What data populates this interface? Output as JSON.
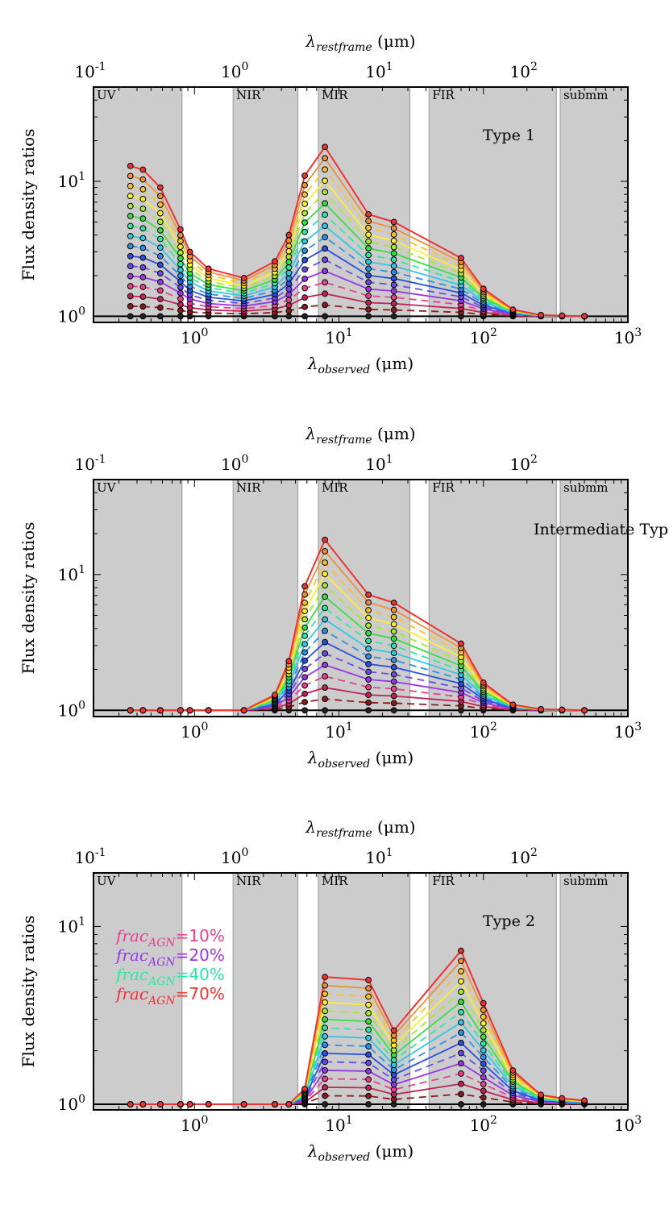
{
  "figure": {
    "ylabel": "Flux density ratios",
    "xlabel_bottom": "λobserved (μm)",
    "xlabel_top": "λrestframe (μm)"
  },
  "bands": [
    {
      "label": "UV",
      "x0": 0.2,
      "x1": 0.82
    },
    {
      "label": "NIR",
      "x0": 1.85,
      "x1": 5.2
    },
    {
      "label": "MIR",
      "x0": 7.2,
      "x1": 31
    },
    {
      "label": "FIR",
      "x0": 42,
      "x1": 320
    },
    {
      "label": "submm",
      "x0": 340,
      "x1": 1000
    }
  ],
  "legend": [
    {
      "label": "frac_AGN=10%",
      "sub": "AGN",
      "pct": "=10%",
      "color": "#e8408f"
    },
    {
      "label": "frac_AGN=20%",
      "sub": "AGN",
      "pct": "=20%",
      "color": "#9b36e6"
    },
    {
      "label": "frac_AGN=40%",
      "sub": "AGN",
      "pct": "=40%",
      "color": "#2de8a3"
    },
    {
      "label": "frac_AGN=70%",
      "sub": "AGN",
      "pct": "=70%",
      "color": "#ee3333"
    }
  ],
  "series_colors": [
    "#222222",
    "#8b1a1a",
    "#c0225a",
    "#e8408f",
    "#9b36e6",
    "#6a4be8",
    "#2850e0",
    "#2a92e6",
    "#30c8e6",
    "#2de8a3",
    "#38e040",
    "#a8e830",
    "#ffee30",
    "#ffc030",
    "#f09030",
    "#ee3333"
  ],
  "series_styles": [
    "solid",
    "dashed",
    "solid",
    "dashed",
    "solid",
    "dashed",
    "solid",
    "dashed",
    "solid",
    "dashed",
    "solid",
    "dashed",
    "solid",
    "dashed",
    "solid",
    "solid"
  ],
  "chart_data": [
    {
      "type": "line",
      "title": "Type 1",
      "xlabel": "λobserved (μm)",
      "xlabel_top": "λrestframe (μm)",
      "ylabel": "Flux density ratios",
      "xscale": "log",
      "yscale": "log",
      "xlim": [
        0.2,
        1000
      ],
      "ylim": [
        0.9,
        50
      ],
      "top_axis_z": 1.9,
      "x": [
        0.36,
        0.44,
        0.58,
        0.8,
        0.93,
        1.25,
        2.2,
        3.6,
        4.5,
        5.8,
        8.0,
        16,
        24,
        70,
        100,
        160,
        250,
        350,
        500
      ],
      "max_curve": [
        13,
        12.2,
        9,
        4.4,
        3.0,
        2.25,
        1.92,
        2.55,
        4.0,
        11,
        18,
        5.7,
        5.0,
        2.7,
        1.6,
        1.12,
        1.02,
        1.01,
        1.0
      ],
      "series_count": 16,
      "series_note": "16 curves from fracAGN=0% (flat at 1) to fracAGN=70% (max_curve), interpolated in ratio space",
      "yticks": [
        {
          "v": 1,
          "label": "10^0"
        },
        {
          "v": 10,
          "label": "10^1"
        }
      ],
      "xticks_bottom": [
        {
          "v": 1,
          "label": "10^0"
        },
        {
          "v": 10,
          "label": "10^1"
        },
        {
          "v": 100,
          "label": "10^2"
        },
        {
          "v": 1000,
          "label": "10^3"
        }
      ],
      "xticks_top": [
        {
          "v": 0.1,
          "label": "10^-1"
        },
        {
          "v": 1,
          "label": "10^0"
        },
        {
          "v": 10,
          "label": "10^1"
        },
        {
          "v": 100,
          "label": "10^2"
        }
      ]
    },
    {
      "type": "line",
      "title": "Intermediate Type",
      "xlabel": "λobserved (μm)",
      "xlabel_top": "λrestframe (μm)",
      "ylabel": "Flux density ratios",
      "xscale": "log",
      "yscale": "log",
      "xlim": [
        0.2,
        1000
      ],
      "ylim": [
        0.9,
        50
      ],
      "top_axis_z": 1.9,
      "x": [
        0.36,
        0.44,
        0.58,
        0.8,
        0.93,
        1.25,
        2.2,
        3.6,
        4.5,
        5.8,
        8.0,
        16,
        24,
        70,
        100,
        160,
        250,
        350,
        500
      ],
      "max_curve": [
        1.0,
        1.0,
        1.0,
        1.0,
        1.0,
        1.0,
        1.0,
        1.3,
        2.3,
        8.2,
        18,
        7.1,
        6.2,
        3.1,
        1.6,
        1.1,
        1.02,
        1.01,
        1.0
      ],
      "series_count": 16,
      "series_note": "16 curves from fracAGN=0% (flat at 1) to fracAGN=70% (max_curve), interpolated in ratio space",
      "yticks": [
        {
          "v": 1,
          "label": "10^0"
        },
        {
          "v": 10,
          "label": "10^1"
        }
      ],
      "xticks_bottom": [
        {
          "v": 1,
          "label": "10^0"
        },
        {
          "v": 10,
          "label": "10^1"
        },
        {
          "v": 100,
          "label": "10^2"
        },
        {
          "v": 1000,
          "label": "10^3"
        }
      ],
      "xticks_top": [
        {
          "v": 0.1,
          "label": "10^-1"
        },
        {
          "v": 1,
          "label": "10^0"
        },
        {
          "v": 10,
          "label": "10^1"
        },
        {
          "v": 100,
          "label": "10^2"
        }
      ]
    },
    {
      "type": "line",
      "title": "Type 2",
      "xlabel": "λobserved (μm)",
      "xlabel_top": "λrestframe (μm)",
      "ylabel": "Flux density ratios",
      "xscale": "log",
      "yscale": "log",
      "xlim": [
        0.2,
        1000
      ],
      "ylim": [
        0.93,
        20
      ],
      "top_axis_z": 1.9,
      "x": [
        0.36,
        0.44,
        0.58,
        0.8,
        0.93,
        1.25,
        2.2,
        3.6,
        4.5,
        5.8,
        8.0,
        16,
        24,
        70,
        100,
        160,
        250,
        350,
        500
      ],
      "max_curve": [
        1.0,
        1.0,
        1.0,
        1.0,
        1.0,
        1.0,
        1.0,
        1.0,
        1.0,
        1.22,
        5.2,
        5.0,
        2.6,
        7.3,
        3.7,
        1.55,
        1.13,
        1.08,
        1.05
      ],
      "series_count": 16,
      "series_note": "16 curves from fracAGN=0% (flat at 1) to fracAGN=70% (max_curve), interpolated in ratio space",
      "yticks": [
        {
          "v": 1,
          "label": "10^0"
        },
        {
          "v": 10,
          "label": "10^1"
        }
      ],
      "xticks_bottom": [
        {
          "v": 1,
          "label": "10^0"
        },
        {
          "v": 10,
          "label": "10^1"
        },
        {
          "v": 100,
          "label": "10^2"
        },
        {
          "v": 1000,
          "label": "10^3"
        }
      ],
      "xticks_top": [
        {
          "v": 0.1,
          "label": "10^-1"
        },
        {
          "v": 1,
          "label": "10^0"
        },
        {
          "v": 10,
          "label": "10^1"
        },
        {
          "v": 100,
          "label": "10^2"
        }
      ]
    }
  ]
}
